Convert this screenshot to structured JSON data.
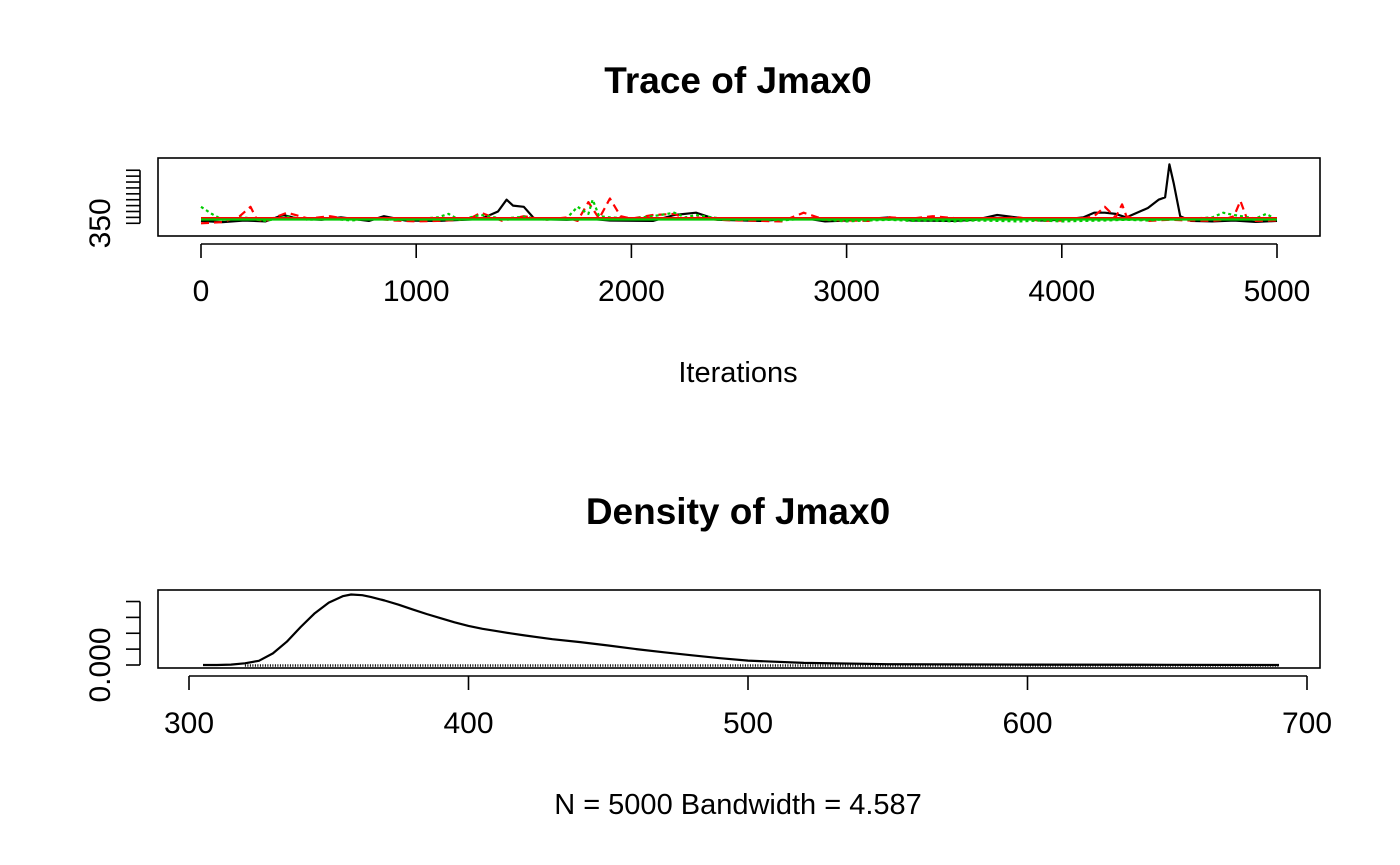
{
  "chart_data": [
    {
      "type": "line",
      "title": "Trace of Jmax0",
      "xlabel": "Iterations",
      "ylabel": "",
      "xlim": [
        0,
        5000
      ],
      "ylim": [
        330,
        610
      ],
      "xticks": [
        0,
        1000,
        2000,
        3000,
        4000,
        5000
      ],
      "yticks": [
        350,
        375,
        400,
        425,
        450,
        475,
        500,
        525,
        550,
        575
      ],
      "ytick_labels": [
        "350",
        "",
        "",
        "",
        "",
        "",
        "",
        "",
        "",
        ""
      ],
      "grid": false,
      "series": [
        {
          "color": "#000000",
          "dash": "solid",
          "x": [
            0,
            100,
            200,
            300,
            380,
            450,
            560,
            650,
            780,
            850,
            950,
            1100,
            1300,
            1380,
            1420,
            1450,
            1500,
            1550,
            1700,
            1800,
            1900,
            2100,
            2200,
            2300,
            2400,
            2600,
            2800,
            2900,
            3000,
            3200,
            3300,
            3500,
            3600,
            3700,
            3900,
            4000,
            4100,
            4150,
            4200,
            4250,
            4300,
            4400,
            4450,
            4480,
            4500,
            4520,
            4550,
            4600,
            4700,
            4800,
            4900,
            5000
          ],
          "y": [
            360,
            355,
            362,
            358,
            385,
            370,
            365,
            375,
            360,
            380,
            362,
            360,
            368,
            400,
            450,
            425,
            420,
            368,
            365,
            370,
            362,
            360,
            385,
            395,
            365,
            360,
            372,
            358,
            362,
            375,
            362,
            360,
            365,
            385,
            362,
            365,
            375,
            395,
            395,
            390,
            375,
            415,
            450,
            460,
            600,
            520,
            380,
            360,
            358,
            362,
            356,
            360
          ]
        },
        {
          "color": "#ff0000",
          "dash": "8,5",
          "x": [
            0,
            100,
            180,
            230,
            260,
            300,
            400,
            500,
            600,
            700,
            800,
            900,
            1000,
            1100,
            1200,
            1250,
            1300,
            1400,
            1500,
            1600,
            1700,
            1750,
            1800,
            1850,
            1900,
            1950,
            2000,
            2100,
            2200,
            2250,
            2300,
            2400,
            2500,
            2600,
            2700,
            2800,
            2900,
            3000,
            3100,
            3200,
            3300,
            3400,
            3500,
            3600,
            3700,
            3800,
            3900,
            4000,
            4100,
            4150,
            4200,
            4250,
            4280,
            4300,
            4400,
            4500,
            4600,
            4700,
            4750,
            4800,
            4830,
            4860,
            4900,
            5000
          ],
          "y": [
            350,
            355,
            380,
            420,
            365,
            360,
            395,
            370,
            380,
            365,
            370,
            362,
            358,
            360,
            365,
            370,
            395,
            360,
            380,
            365,
            375,
            360,
            440,
            370,
            455,
            380,
            370,
            385,
            390,
            370,
            375,
            365,
            362,
            360,
            358,
            395,
            365,
            362,
            360,
            375,
            370,
            380,
            372,
            365,
            370,
            375,
            360,
            362,
            370,
            380,
            420,
            375,
            430,
            380,
            360,
            365,
            362,
            360,
            365,
            380,
            445,
            370,
            360,
            362
          ]
        },
        {
          "color": "#00cc00",
          "dash": "3,3",
          "x": [
            0,
            50,
            100,
            200,
            300,
            400,
            500,
            600,
            700,
            800,
            900,
            1000,
            1100,
            1150,
            1200,
            1300,
            1400,
            1500,
            1600,
            1700,
            1750,
            1800,
            1820,
            1850,
            1900,
            2000,
            2100,
            2200,
            2250,
            2300,
            2400,
            2500,
            2600,
            2700,
            2800,
            2900,
            3000,
            3100,
            3200,
            3300,
            3400,
            3500,
            3600,
            3700,
            3800,
            3900,
            4000,
            4100,
            4200,
            4300,
            4400,
            4500,
            4600,
            4700,
            4750,
            4800,
            4900,
            4950,
            5000
          ],
          "y": [
            420,
            390,
            365,
            375,
            360,
            378,
            365,
            370,
            362,
            372,
            365,
            368,
            375,
            390,
            365,
            385,
            370,
            378,
            365,
            372,
            420,
            390,
            450,
            380,
            375,
            370,
            380,
            395,
            375,
            385,
            372,
            365,
            368,
            362,
            370,
            365,
            358,
            362,
            365,
            360,
            362,
            358,
            362,
            360,
            358,
            362,
            358,
            360,
            362,
            365,
            362,
            368,
            370,
            375,
            395,
            385,
            370,
            390,
            365
          ]
        },
        {
          "color": "#000000",
          "dash": "solid",
          "x": [
            0,
            5000
          ],
          "y": [
            368,
            368
          ]
        },
        {
          "color": "#ff0000",
          "dash": "solid",
          "x": [
            0,
            5000
          ],
          "y": [
            372,
            372
          ]
        },
        {
          "color": "#00cc00",
          "dash": "solid",
          "x": [
            0,
            5000
          ],
          "y": [
            366,
            366
          ]
        }
      ]
    },
    {
      "type": "area",
      "title": "Density of Jmax0",
      "xlabel": "N = 5000   Bandwidth = 4.587",
      "ylabel": "",
      "xlim": [
        300,
        700
      ],
      "ylim": [
        0,
        0.0345
      ],
      "xticks": [
        300,
        400,
        500,
        600,
        700
      ],
      "yticks": [
        0,
        0.0075,
        0.015,
        0.0225,
        0.03
      ],
      "ytick_labels": [
        "0.000",
        "",
        "",
        "",
        ""
      ],
      "grid": false,
      "rug": {
        "from": 320,
        "to": 690
      },
      "series": [
        {
          "color": "#000000",
          "x": [
            305,
            310,
            315,
            320,
            325,
            330,
            335,
            340,
            345,
            350,
            355,
            358,
            362,
            365,
            370,
            375,
            380,
            385,
            390,
            395,
            400,
            405,
            410,
            415,
            420,
            430,
            440,
            450,
            460,
            470,
            480,
            490,
            500,
            520,
            550,
            600,
            650,
            690
          ],
          "y": [
            0.0,
            0.0,
            0.0002,
            0.0008,
            0.002,
            0.0055,
            0.011,
            0.018,
            0.0245,
            0.0295,
            0.0325,
            0.0333,
            0.033,
            0.0322,
            0.0305,
            0.0285,
            0.0263,
            0.0241,
            0.0221,
            0.0202,
            0.0185,
            0.0171,
            0.016,
            0.015,
            0.014,
            0.0122,
            0.0108,
            0.0092,
            0.0075,
            0.006,
            0.0046,
            0.0032,
            0.0021,
            0.001,
            0.0004,
            0.0002,
            0.0001,
            0.0
          ]
        }
      ]
    }
  ]
}
